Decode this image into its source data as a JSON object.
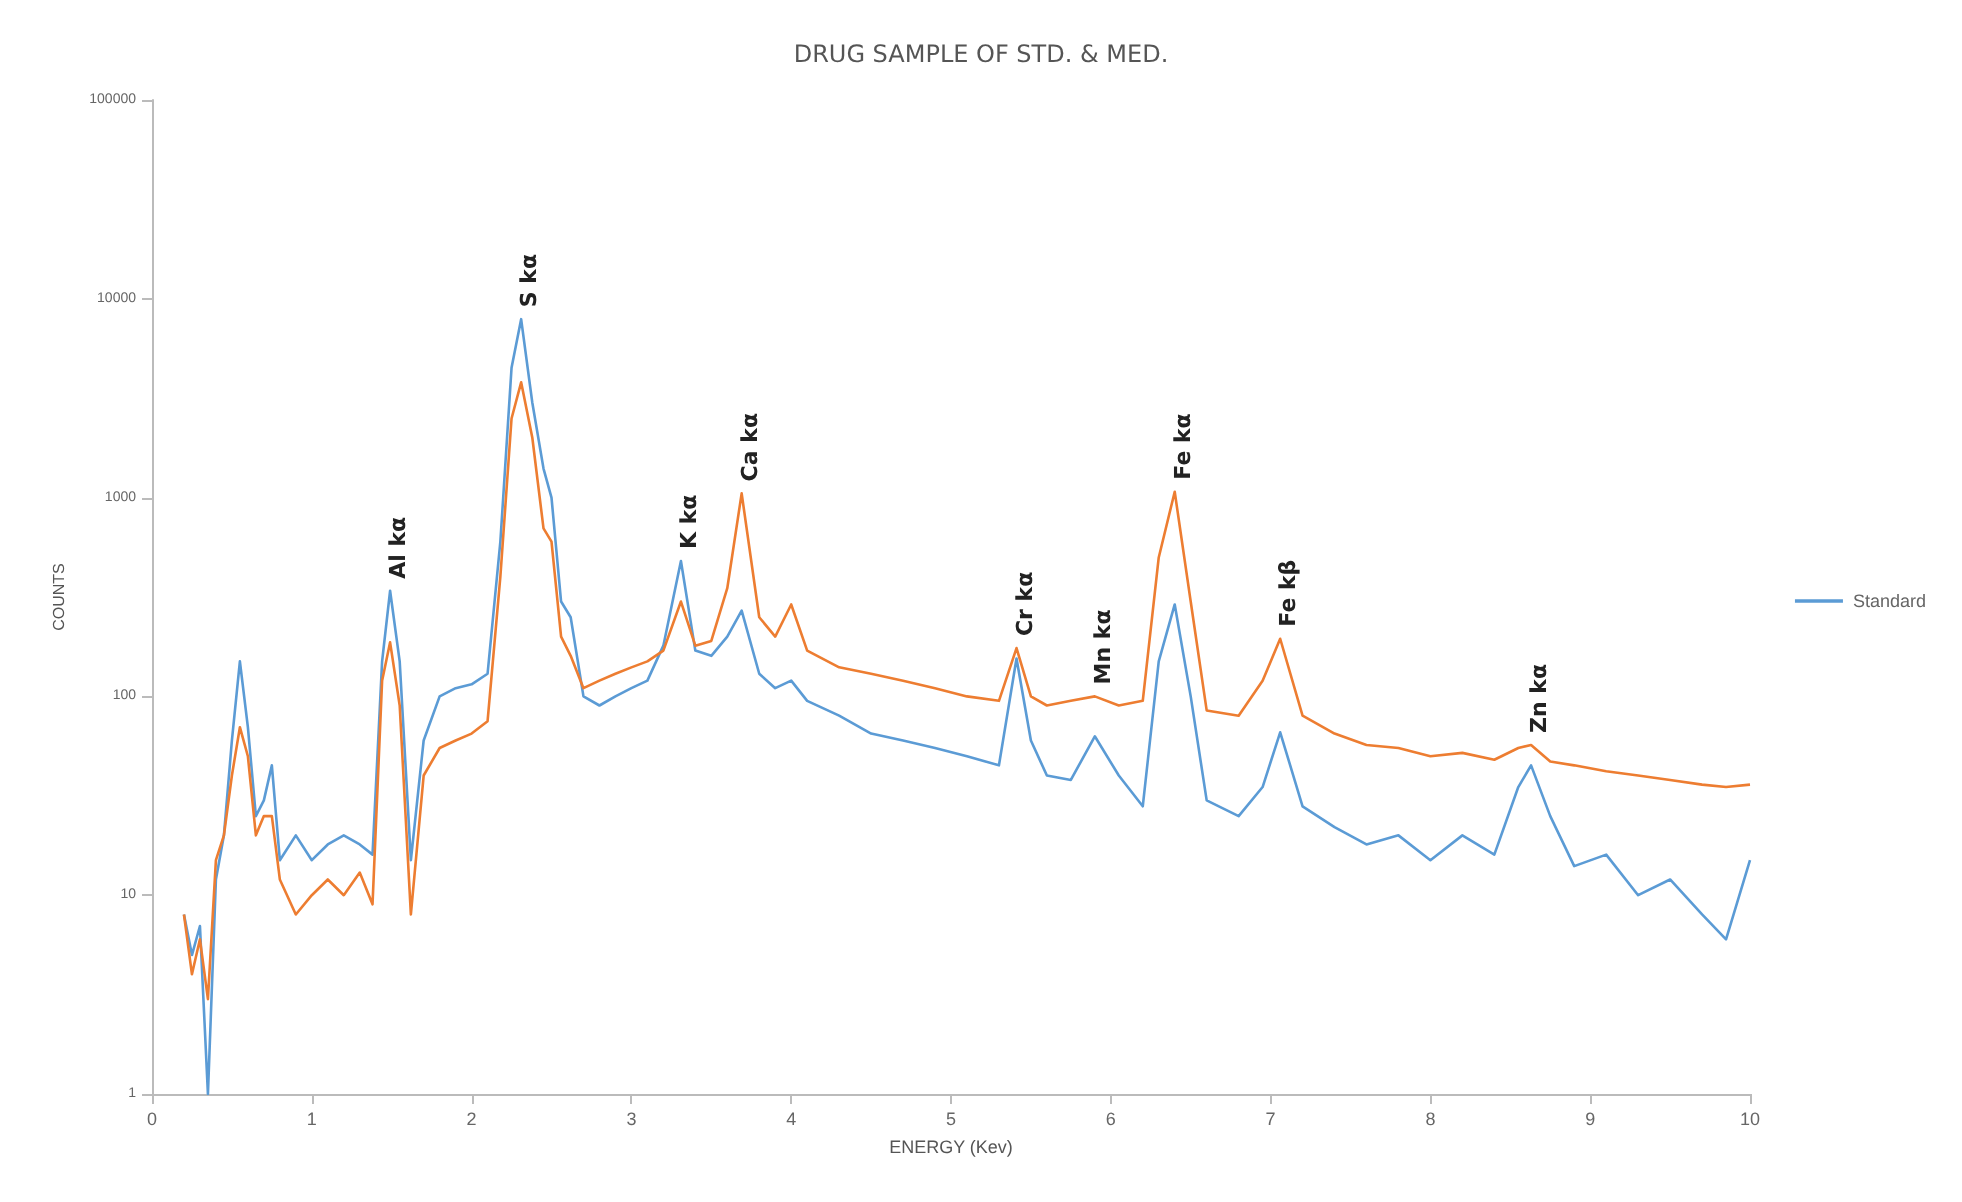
{
  "chart_data": {
    "type": "line",
    "title": "DRUG SAMPLE OF STD. & MED.",
    "xlabel": "ENERGY (Kev)",
    "ylabel": "COUNTS",
    "x": [
      0.2,
      0.25,
      0.3,
      0.35,
      0.4,
      0.45,
      0.5,
      0.55,
      0.6,
      0.65,
      0.7,
      0.75,
      0.8,
      0.9,
      1.0,
      1.1,
      1.2,
      1.3,
      1.38,
      1.44,
      1.49,
      1.55,
      1.62,
      1.7,
      1.8,
      1.9,
      2.0,
      2.1,
      2.18,
      2.25,
      2.31,
      2.38,
      2.45,
      2.5,
      2.56,
      2.62,
      2.7,
      2.8,
      2.9,
      3.0,
      3.1,
      3.2,
      3.31,
      3.4,
      3.5,
      3.6,
      3.69,
      3.8,
      3.9,
      4.0,
      4.1,
      4.3,
      4.5,
      4.7,
      4.9,
      5.1,
      5.3,
      5.41,
      5.5,
      5.6,
      5.75,
      5.9,
      6.05,
      6.2,
      6.3,
      6.4,
      6.5,
      6.6,
      6.8,
      6.95,
      7.06,
      7.2,
      7.4,
      7.6,
      7.8,
      8.0,
      8.2,
      8.4,
      8.55,
      8.63,
      8.75,
      8.9,
      9.1,
      9.3,
      9.5,
      9.7,
      9.85,
      10.0
    ],
    "series": [
      {
        "name": "Standard",
        "color": "#5b9bd5",
        "values": [
          8,
          5,
          7,
          1,
          12,
          20,
          60,
          150,
          70,
          25,
          30,
          45,
          15,
          20,
          15,
          18,
          20,
          18,
          16,
          150,
          340,
          150,
          15,
          60,
          100,
          110,
          115,
          130,
          600,
          4500,
          7900,
          3000,
          1400,
          1000,
          300,
          250,
          100,
          90,
          100,
          110,
          120,
          180,
          480,
          170,
          160,
          200,
          270,
          130,
          110,
          120,
          95,
          80,
          65,
          60,
          55,
          50,
          45,
          155,
          60,
          40,
          38,
          63,
          40,
          28,
          150,
          290,
          100,
          30,
          25,
          35,
          66,
          28,
          22,
          18,
          20,
          15,
          20,
          16,
          35,
          45,
          25,
          14,
          16,
          10,
          12,
          8,
          6,
          15
        ]
      },
      {
        "color": "#ed7d31",
        "values": [
          8,
          4,
          6,
          3,
          15,
          20,
          40,
          70,
          50,
          20,
          25,
          25,
          12,
          8,
          10,
          12,
          10,
          13,
          9,
          120,
          187,
          90,
          8,
          40,
          55,
          60,
          65,
          75,
          400,
          2500,
          3800,
          2000,
          700,
          600,
          200,
          160,
          110,
          120,
          130,
          140,
          150,
          170,
          300,
          180,
          190,
          350,
          1050,
          250,
          200,
          290,
          170,
          140,
          130,
          120,
          110,
          100,
          95,
          175,
          100,
          90,
          95,
          100,
          90,
          95,
          500,
          1070,
          300,
          85,
          80,
          120,
          195,
          80,
          65,
          57,
          55,
          50,
          52,
          48,
          55,
          57,
          47,
          45,
          42,
          40,
          38,
          36,
          35,
          36
        ]
      }
    ],
    "xlim": [
      0,
      10
    ],
    "xticks": [
      0,
      1,
      2,
      3,
      4,
      5,
      6,
      7,
      8,
      9,
      10
    ],
    "ylim": [
      1,
      100000
    ],
    "yticks": [
      1,
      10,
      100,
      1000,
      10000,
      100000
    ],
    "log": true,
    "grid": false,
    "legend": "right",
    "marker": "none",
    "annotations": [
      {
        "text": "Al kα",
        "x": 1.49,
        "y": 340
      },
      {
        "text": "S kα",
        "x": 2.31,
        "y": 7900
      },
      {
        "text": "K kα",
        "x": 3.31,
        "y": 480
      },
      {
        "text": "Ca kα",
        "x": 3.69,
        "y": 1050
      },
      {
        "text": "Cr kα",
        "x": 5.41,
        "y": 175
      },
      {
        "text": "Mn kα",
        "x": 5.9,
        "y": 100
      },
      {
        "text": "Fe kα",
        "x": 6.4,
        "y": 1070
      },
      {
        "text": "Fe kβ",
        "x": 7.06,
        "y": 195
      },
      {
        "text": "Zn kα",
        "x": 8.63,
        "y": 57
      }
    ]
  }
}
